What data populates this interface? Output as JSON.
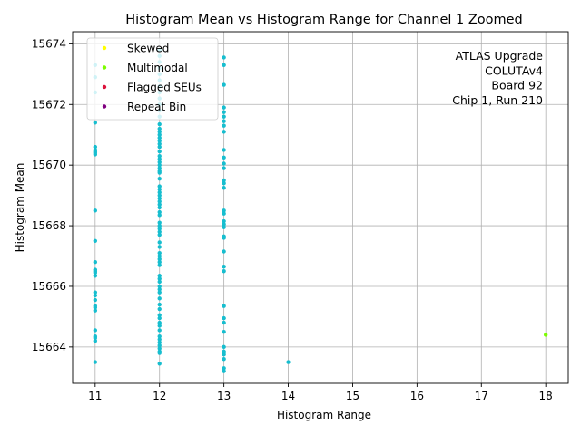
{
  "chart_data": {
    "type": "scatter",
    "title": "Histogram Mean vs Histogram Range for Channel 1 Zoomed",
    "xlabel": "Histogram Range",
    "ylabel": "Histogram Mean",
    "xlim": [
      10.65,
      18.35
    ],
    "ylim": [
      15662.8,
      15674.4
    ],
    "xticks": [
      11,
      12,
      13,
      14,
      15,
      16,
      17,
      18
    ],
    "yticks": [
      15664,
      15666,
      15668,
      15670,
      15672,
      15674
    ],
    "grid": true,
    "legend_position": "top-left",
    "annotation_position": "top-right",
    "annotation": [
      "ATLAS Upgrade",
      "COLUTAv4",
      "Board 92",
      "Chip 1, Run 210"
    ],
    "legend": [
      {
        "label": "Skewed",
        "color": "#ffff00"
      },
      {
        "label": "Multimodal",
        "color": "#7cfc00"
      },
      {
        "label": "Flagged SEUs",
        "color": "#dc143c"
      },
      {
        "label": "Repeat Bin",
        "color": "#800080"
      }
    ],
    "series": [
      {
        "color": "#17becf",
        "points": [
          [
            11,
            15673.3
          ],
          [
            11,
            15672.9
          ],
          [
            11,
            15672.4
          ],
          [
            11,
            15671.4
          ],
          [
            11,
            15670.6
          ],
          [
            11,
            15670.5
          ],
          [
            11,
            15670.45
          ],
          [
            11,
            15670.4
          ],
          [
            11,
            15670.35
          ],
          [
            11,
            15668.5
          ],
          [
            11,
            15667.5
          ],
          [
            11,
            15666.8
          ],
          [
            11,
            15666.55
          ],
          [
            11,
            15666.5
          ],
          [
            11,
            15666.45
          ],
          [
            11,
            15666.35
          ],
          [
            11,
            15665.8
          ],
          [
            11,
            15665.7
          ],
          [
            11,
            15665.55
          ],
          [
            11,
            15665.35
          ],
          [
            11,
            15665.3
          ],
          [
            11,
            15665.2
          ],
          [
            11,
            15664.55
          ],
          [
            11,
            15664.35
          ],
          [
            11,
            15664.3
          ],
          [
            11,
            15664.2
          ],
          [
            11,
            15663.5
          ],
          [
            12,
            15673.8
          ],
          [
            12,
            15673.6
          ],
          [
            12,
            15673.4
          ],
          [
            12,
            15673.2
          ],
          [
            12,
            15673.0
          ],
          [
            12,
            15672.8
          ],
          [
            12,
            15672.6
          ],
          [
            12,
            15672.4
          ],
          [
            12,
            15672.2
          ],
          [
            12,
            15672.0
          ],
          [
            12,
            15671.8
          ],
          [
            12,
            15671.6
          ],
          [
            12,
            15671.35
          ],
          [
            12,
            15671.2
          ],
          [
            12,
            15671.1
          ],
          [
            12,
            15671.0
          ],
          [
            12,
            15670.9
          ],
          [
            12,
            15670.8
          ],
          [
            12,
            15670.7
          ],
          [
            12,
            15670.6
          ],
          [
            12,
            15670.45
          ],
          [
            12,
            15670.3
          ],
          [
            12,
            15670.2
          ],
          [
            12,
            15670.1
          ],
          [
            12,
            15670.0
          ],
          [
            12,
            15669.9
          ],
          [
            12,
            15669.8
          ],
          [
            12,
            15669.75
          ],
          [
            12,
            15669.55
          ],
          [
            12,
            15669.3
          ],
          [
            12,
            15669.2
          ],
          [
            12,
            15669.1
          ],
          [
            12,
            15669.0
          ],
          [
            12,
            15668.9
          ],
          [
            12,
            15668.8
          ],
          [
            12,
            15668.7
          ],
          [
            12,
            15668.6
          ],
          [
            12,
            15668.45
          ],
          [
            12,
            15668.35
          ],
          [
            12,
            15668.1
          ],
          [
            12,
            15668.0
          ],
          [
            12,
            15667.9
          ],
          [
            12,
            15667.8
          ],
          [
            12,
            15667.7
          ],
          [
            12,
            15667.45
          ],
          [
            12,
            15667.3
          ],
          [
            12,
            15667.1
          ],
          [
            12,
            15667.0
          ],
          [
            12,
            15666.9
          ],
          [
            12,
            15666.8
          ],
          [
            12,
            15666.7
          ],
          [
            12,
            15666.35
          ],
          [
            12,
            15666.25
          ],
          [
            12,
            15666.15
          ],
          [
            12,
            15666.0
          ],
          [
            12,
            15665.9
          ],
          [
            12,
            15665.8
          ],
          [
            12,
            15665.6
          ],
          [
            12,
            15665.4
          ],
          [
            12,
            15665.25
          ],
          [
            12,
            15665.05
          ],
          [
            12,
            15664.95
          ],
          [
            12,
            15664.8
          ],
          [
            12,
            15664.7
          ],
          [
            12,
            15664.55
          ],
          [
            12,
            15664.35
          ],
          [
            12,
            15664.25
          ],
          [
            12,
            15664.15
          ],
          [
            12,
            15664.05
          ],
          [
            12,
            15663.95
          ],
          [
            12,
            15663.85
          ],
          [
            12,
            15663.8
          ],
          [
            12,
            15663.45
          ],
          [
            13,
            15673.55
          ],
          [
            13,
            15673.3
          ],
          [
            13,
            15672.65
          ],
          [
            13,
            15671.9
          ],
          [
            13,
            15671.75
          ],
          [
            13,
            15671.6
          ],
          [
            13,
            15671.45
          ],
          [
            13,
            15671.3
          ],
          [
            13,
            15671.1
          ],
          [
            13,
            15670.5
          ],
          [
            13,
            15670.25
          ],
          [
            13,
            15670.05
          ],
          [
            13,
            15669.9
          ],
          [
            13,
            15669.5
          ],
          [
            13,
            15669.4
          ],
          [
            13,
            15669.25
          ],
          [
            13,
            15668.5
          ],
          [
            13,
            15668.4
          ],
          [
            13,
            15668.15
          ],
          [
            13,
            15668.05
          ],
          [
            13,
            15667.95
          ],
          [
            13,
            15667.65
          ],
          [
            13,
            15667.6
          ],
          [
            13,
            15667.15
          ],
          [
            13,
            15666.65
          ],
          [
            13,
            15666.5
          ],
          [
            13,
            15665.35
          ],
          [
            13,
            15664.95
          ],
          [
            13,
            15664.8
          ],
          [
            13,
            15664.5
          ],
          [
            13,
            15664.0
          ],
          [
            13,
            15663.85
          ],
          [
            13,
            15663.75
          ],
          [
            13,
            15663.6
          ],
          [
            13,
            15663.3
          ],
          [
            13,
            15663.2
          ],
          [
            14,
            15663.5
          ]
        ]
      },
      {
        "color": "#7cfc00",
        "points": [
          [
            18,
            15664.4
          ]
        ]
      }
    ]
  }
}
